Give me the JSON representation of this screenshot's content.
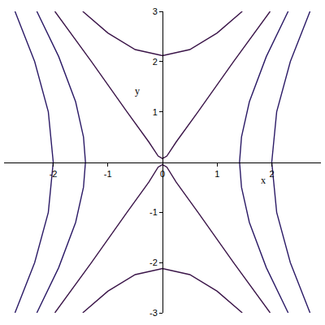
{
  "chart_data": {
    "type": "line",
    "x_label": "x",
    "y_label": "y",
    "xlim": [
      -2.9,
      2.9
    ],
    "ylim": [
      -3,
      3
    ],
    "xticks": [
      -2,
      -1,
      0,
      1,
      2
    ],
    "yticks": [
      -3,
      -2,
      -1,
      1,
      2,
      3
    ],
    "grid": false,
    "series": [
      {
        "color": "#2b1a66",
        "x": [
          -2.7,
          -2.34,
          -2.09,
          -2,
          -2.09,
          -2.34,
          -2.7
        ],
        "values": [
          3,
          2,
          1,
          0,
          -1,
          -2,
          -3
        ]
      },
      {
        "color": "#2b1a66",
        "x": [
          -2.3,
          -1.9,
          -1.59,
          -1.446,
          -1.41,
          -1.446,
          -1.59,
          -1.9,
          -2.3
        ],
        "values": [
          3,
          2.1,
          1.2,
          0.5,
          0,
          -0.5,
          -1.2,
          -2.1,
          -3
        ]
      },
      {
        "color": "#2b1a66",
        "x": [
          2.7,
          2.34,
          2.09,
          2,
          2.09,
          2.34,
          2.7
        ],
        "values": [
          3,
          2,
          1,
          0,
          -1,
          -2,
          -3
        ]
      },
      {
        "color": "#2b1a66",
        "x": [
          2.3,
          1.9,
          1.59,
          1.446,
          1.41,
          1.446,
          1.59,
          1.9,
          2.3
        ],
        "values": [
          3,
          2.1,
          1.2,
          0.5,
          0,
          -0.5,
          -1.2,
          -2.1,
          -3
        ]
      },
      {
        "color": "#3a1448",
        "x": [
          -1.46,
          -1,
          -0.5,
          0,
          0.5,
          1,
          1.46
        ],
        "values": [
          3,
          2.57,
          2.24,
          2.12,
          2.24,
          2.57,
          3
        ]
      },
      {
        "color": "#3a1448",
        "x": [
          -1.46,
          -1,
          -0.5,
          0,
          0.5,
          1,
          1.46
        ],
        "values": [
          -3,
          -2.57,
          -2.24,
          -2.12,
          -2.24,
          -2.57,
          -3
        ]
      },
      {
        "color": "#3a1448",
        "x": [
          -1.97,
          -1.3,
          -0.65,
          -0.25,
          -0.08,
          0,
          0.08,
          0.25,
          0.65,
          1.3,
          1.97
        ],
        "values": [
          3,
          2,
          1,
          0.4,
          0.12,
          0.07,
          0.12,
          0.4,
          1,
          2,
          3
        ]
      },
      {
        "color": "#3a1448",
        "x": [
          -1.97,
          -1.3,
          -0.65,
          -0.25,
          -0.08,
          0,
          0.08,
          0.25,
          0.65,
          1.3,
          1.97
        ],
        "values": [
          -3,
          -2,
          -1,
          -0.4,
          -0.1,
          -0.05,
          -0.1,
          -0.4,
          -1,
          -2,
          -3
        ]
      }
    ]
  }
}
